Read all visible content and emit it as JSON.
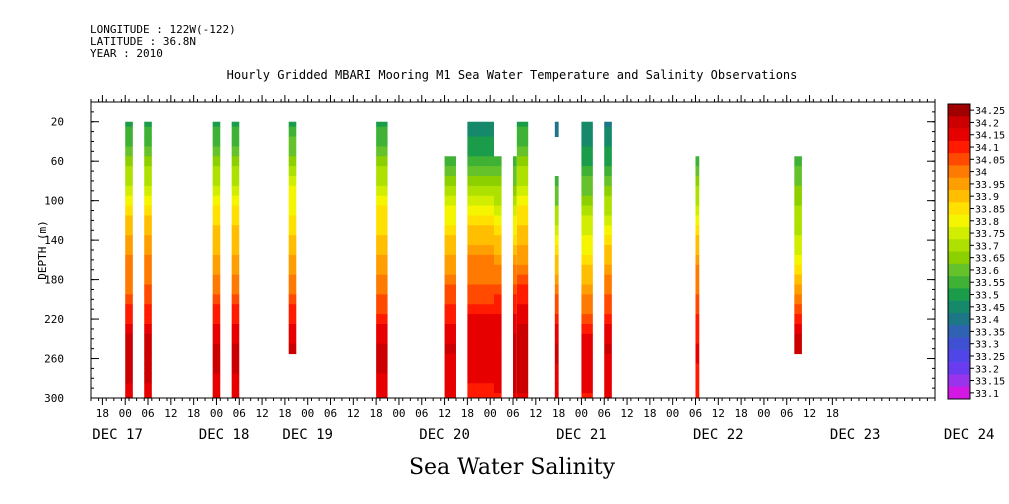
{
  "header": {
    "longitude": "LONGITUDE : 122W(-122)",
    "latitude": "LATITUDE : 36.8N",
    "year": "YEAR : 2010"
  },
  "chart_title": "Hourly Gridded MBARI Mooring M1 Sea Water Temperature and Salinity Observations",
  "bottom_title": "Sea Water Salinity",
  "chart_data": {
    "type": "heatmap",
    "xlabel": "",
    "ylabel": "DEPTH (m)",
    "xlim_hours": [
      -9,
      213
    ],
    "ylim": [
      300,
      0
    ],
    "y_ticks": [
      20,
      60,
      100,
      140,
      180,
      220,
      260,
      300
    ],
    "x_hour_tick_labels": [
      "18",
      "00",
      "06",
      "12",
      "18",
      "00",
      "06",
      "12",
      "18",
      "00",
      "06",
      "12",
      "18",
      "00",
      "06",
      "12",
      "18",
      "00",
      "06",
      "12",
      "18",
      "00",
      "06",
      "12",
      "18",
      "00",
      "06",
      "12",
      "18",
      "00",
      "06",
      "12",
      "18"
    ],
    "day_labels": [
      "DEC 17",
      "DEC 18",
      "DEC 19",
      "DEC 20",
      "DEC 21",
      "DEC 22",
      "DEC 23",
      "DEC 24"
    ],
    "colorbar_levels": [
      "34.25",
      "34.2",
      "34.15",
      "34.1",
      "34.05",
      "34",
      "33.95",
      "33.9",
      "33.85",
      "33.8",
      "33.75",
      "33.7",
      "33.65",
      "33.6",
      "33.55",
      "33.5",
      "33.45",
      "33.4",
      "33.35",
      "33.3",
      "33.25",
      "33.2",
      "33.15",
      "33.1"
    ],
    "colorbar_colors": [
      "#a00000",
      "#cc0000",
      "#e60000",
      "#ff1a00",
      "#ff4a00",
      "#ff7a00",
      "#ff9e00",
      "#ffbe00",
      "#ffe000",
      "#f5f500",
      "#d2ee00",
      "#aee000",
      "#8cd000",
      "#66c22a",
      "#3fb235",
      "#1a9c4a",
      "#16896a",
      "#1c7686",
      "#2f62b2",
      "#3f50d2",
      "#5045e6",
      "#6a3cf0",
      "#9a33ec",
      "#d218e2"
    ],
    "depths": [
      20,
      30,
      40,
      50,
      60,
      70,
      80,
      90,
      100,
      110,
      120,
      130,
      140,
      150,
      160,
      170,
      180,
      190,
      200,
      210,
      220,
      230,
      240,
      250,
      260,
      270,
      280,
      290,
      300
    ],
    "columns": [
      {
        "start_hour": 0,
        "end_hour": 2,
        "values": [
          33.52,
          33.55,
          33.58,
          33.62,
          33.66,
          33.7,
          33.74,
          33.78,
          33.82,
          33.86,
          33.9,
          33.94,
          33.96,
          33.98,
          34.0,
          34.01,
          34.02,
          34.03,
          34.06,
          34.1,
          34.14,
          34.17,
          34.2,
          34.22,
          34.22,
          34.21,
          34.2,
          34.19,
          34.18
        ]
      },
      {
        "start_hour": 5,
        "end_hour": 7,
        "values": [
          33.52,
          33.55,
          33.58,
          33.62,
          33.66,
          33.7,
          33.74,
          33.78,
          33.82,
          33.86,
          33.9,
          33.94,
          33.97,
          33.99,
          34.01,
          34.02,
          34.03,
          34.05,
          34.08,
          34.11,
          34.14,
          34.17,
          34.2,
          34.22,
          34.23,
          34.21,
          34.2,
          34.19,
          34.18
        ]
      },
      {
        "start_hour": 23,
        "end_hour": 25,
        "values": [
          33.54,
          33.56,
          33.59,
          33.62,
          33.66,
          33.7,
          33.74,
          33.78,
          33.82,
          33.86,
          33.88,
          33.9,
          33.92,
          33.94,
          33.96,
          33.98,
          34.0,
          34.03,
          34.06,
          34.1,
          34.13,
          34.16,
          34.19,
          34.21,
          34.22,
          34.2,
          34.19,
          34.18,
          34.18
        ]
      },
      {
        "start_hour": 28,
        "end_hour": 30,
        "values": [
          33.5,
          33.55,
          33.58,
          33.62,
          33.66,
          33.7,
          33.74,
          33.78,
          33.82,
          33.86,
          33.88,
          33.9,
          33.92,
          33.94,
          33.96,
          33.98,
          34.0,
          34.03,
          34.06,
          34.1,
          34.13,
          34.16,
          34.19,
          34.21,
          34.22,
          34.2,
          34.19,
          34.18,
          34.18
        ]
      },
      {
        "start_hour": 43,
        "end_hour": 45,
        "values": [
          33.52,
          33.56,
          33.6,
          33.64,
          33.68,
          33.72,
          33.76,
          33.8,
          33.82,
          33.84,
          33.86,
          33.88,
          33.9,
          33.92,
          33.95,
          33.98,
          34.0,
          34.03,
          34.06,
          34.1,
          34.13,
          34.16,
          34.19,
          34.22,
          null,
          null,
          null,
          null,
          null
        ]
      },
      {
        "start_hour": 66,
        "end_hour": 69,
        "values": [
          33.52,
          33.55,
          33.58,
          33.62,
          33.66,
          33.7,
          33.74,
          33.78,
          33.82,
          33.85,
          33.87,
          33.89,
          33.91,
          33.93,
          33.95,
          33.97,
          34.0,
          34.03,
          34.06,
          34.09,
          34.12,
          34.15,
          34.18,
          34.2,
          34.21,
          34.2,
          34.18,
          34.16,
          34.15
        ]
      },
      {
        "start_hour": 84,
        "end_hour": 87,
        "values": [
          null,
          null,
          null,
          null,
          33.55,
          33.6,
          33.65,
          33.7,
          33.75,
          33.8,
          33.84,
          33.87,
          33.9,
          33.93,
          33.96,
          33.99,
          34.02,
          34.05,
          34.08,
          34.11,
          34.14,
          34.17,
          34.19,
          34.2,
          34.19,
          34.18,
          34.17,
          34.16,
          34.15
        ]
      },
      {
        "start_hour": 90,
        "end_hour": 97,
        "values": [
          33.48,
          33.48,
          33.5,
          33.52,
          33.55,
          33.6,
          33.65,
          33.7,
          33.75,
          33.8,
          33.85,
          33.9,
          33.94,
          33.98,
          34.0,
          34.02,
          34.04,
          34.06,
          34.09,
          34.12,
          34.15,
          34.17,
          34.18,
          34.18,
          34.17,
          34.16,
          34.15,
          34.14,
          34.14
        ]
      },
      {
        "start_hour": 97,
        "end_hour": 99,
        "values": [
          null,
          null,
          null,
          null,
          33.58,
          33.62,
          33.66,
          33.7,
          33.74,
          33.78,
          33.82,
          33.86,
          33.9,
          33.94,
          33.98,
          34.01,
          34.04,
          34.07,
          34.1,
          34.13,
          34.16,
          34.18,
          34.19,
          34.19,
          34.18,
          34.17,
          34.16,
          34.15,
          34.14
        ]
      },
      {
        "start_hour": 102,
        "end_hour": 103,
        "values": [
          null,
          null,
          null,
          null,
          33.56,
          33.6,
          33.64,
          33.68,
          33.72,
          33.76,
          33.8,
          33.84,
          33.88,
          33.92,
          33.96,
          34.0,
          34.04,
          34.07,
          34.1,
          34.13,
          34.16,
          34.19,
          34.21,
          34.22,
          34.23,
          34.22,
          34.21,
          34.2,
          34.19
        ]
      },
      {
        "start_hour": 103,
        "end_hour": 106,
        "values": [
          33.52,
          33.55,
          33.58,
          33.62,
          33.66,
          33.7,
          33.74,
          33.78,
          33.82,
          33.86,
          33.88,
          33.9,
          33.92,
          33.95,
          33.98,
          34.02,
          34.06,
          34.1,
          34.13,
          34.16,
          34.19,
          34.21,
          34.22,
          34.23,
          34.23,
          34.22,
          34.21,
          34.2,
          34.19
        ]
      },
      {
        "start_hour": 113,
        "end_hour": 114,
        "values": [
          33.42,
          33.44,
          null,
          null,
          null,
          null,
          33.56,
          33.6,
          33.64,
          33.7,
          33.74,
          33.78,
          33.82,
          33.86,
          33.9,
          33.94,
          33.97,
          34.01,
          34.05,
          34.09,
          34.13,
          34.16,
          34.19,
          34.21,
          34.2,
          34.19,
          34.18,
          34.17,
          34.16
        ]
      },
      {
        "start_hour": 120,
        "end_hour": 123,
        "values": [
          33.46,
          33.47,
          33.48,
          33.5,
          33.52,
          33.56,
          33.6,
          33.64,
          33.68,
          33.72,
          33.75,
          33.78,
          33.81,
          33.84,
          33.87,
          33.9,
          33.93,
          33.96,
          34.0,
          34.04,
          34.08,
          34.12,
          34.16,
          34.18,
          34.18,
          34.17,
          34.16,
          34.15,
          34.14
        ]
      },
      {
        "start_hour": 126,
        "end_hour": 128,
        "values": [
          33.44,
          33.46,
          33.48,
          33.5,
          33.54,
          33.58,
          33.62,
          33.66,
          33.7,
          33.74,
          33.78,
          33.82,
          33.86,
          33.9,
          33.93,
          33.96,
          34.0,
          34.03,
          34.06,
          34.09,
          34.12,
          34.15,
          34.18,
          34.2,
          34.19,
          34.18,
          34.17,
          34.16,
          34.15
        ]
      },
      {
        "start_hour": 150,
        "end_hour": 151,
        "values": [
          null,
          null,
          null,
          null,
          33.55,
          33.62,
          33.66,
          33.7,
          33.74,
          33.78,
          33.82,
          33.86,
          33.9,
          33.94,
          33.98,
          34.0,
          34.02,
          34.04,
          34.06,
          34.08,
          34.1,
          34.12,
          34.14,
          34.15,
          34.15,
          34.14,
          34.14,
          34.13,
          34.13
        ]
      },
      {
        "start_hour": 176,
        "end_hour": 178,
        "values": [
          null,
          null,
          null,
          null,
          33.55,
          33.6,
          33.64,
          33.66,
          33.68,
          33.7,
          33.72,
          33.74,
          33.76,
          33.78,
          33.82,
          33.86,
          33.9,
          33.96,
          34.02,
          34.08,
          34.14,
          34.18,
          34.21,
          34.22,
          null,
          null,
          null,
          null,
          null
        ]
      }
    ]
  }
}
